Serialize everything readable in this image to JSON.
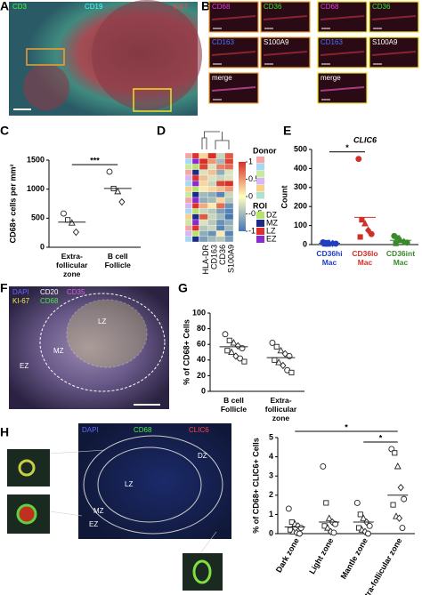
{
  "panel_letters": [
    "A",
    "B",
    "C",
    "D",
    "E",
    "F",
    "G",
    "H"
  ],
  "panel_a": {
    "labels": [
      "CD3",
      "CD19",
      "Ki67"
    ]
  },
  "panel_b": {
    "labels": [
      "CD68",
      "CD36",
      "CD163",
      "S100A9",
      "merge"
    ]
  },
  "panel_f": {
    "labels": [
      "DAPI",
      "CD20",
      "CD35",
      "KI-67",
      "CD68"
    ],
    "regions": [
      "LZ",
      "MZ",
      "EZ"
    ]
  },
  "panel_h": {
    "labels": [
      "DAPI",
      "CD68",
      "CLIC6"
    ],
    "regions": [
      "DZ",
      "LZ",
      "MZ",
      "EZ"
    ]
  },
  "chart_data": [
    {
      "type": "dot",
      "ylabel": "CD68+ cells per mm²",
      "categories": [
        "Extra-follicular zone",
        "B cell Follicle"
      ],
      "values": [
        [
          580,
          470,
          420,
          260
        ],
        [
          1300,
          1010,
          960,
          780
        ]
      ],
      "means": [
        432,
        1012
      ],
      "ylim": [
        0,
        1500
      ],
      "yticks": [
        0,
        500,
        1000,
        1500
      ],
      "brackets": [
        {
          "label": "***",
          "between": [
            0,
            1
          ]
        }
      ]
    },
    {
      "type": "heatmap",
      "columns": [
        "HLA-DR",
        "CD163",
        "CD36",
        "S100A9"
      ],
      "values": [
        [
          0.2,
          1,
          -0.3,
          0.8
        ],
        [
          1,
          0.5,
          -0.5,
          0.9
        ],
        [
          0.9,
          -0.2,
          0.6,
          0.7
        ],
        [
          -0.2,
          0.3,
          -0.6,
          -0.2
        ],
        [
          0.3,
          -0.2,
          -0.3,
          -0.2
        ],
        [
          0.2,
          -0.3,
          0.9,
          1
        ],
        [
          0.1,
          0.2,
          0.3,
          0.5
        ],
        [
          -0.5,
          -0.6,
          -0.9,
          -0.3
        ],
        [
          -0.6,
          -0.5,
          0.2,
          -0.4
        ],
        [
          0.4,
          0.1,
          0.7,
          -0.8
        ],
        [
          -0.3,
          -0.4,
          -0.7,
          -0.9
        ],
        [
          0.8,
          -0.3,
          -0.5,
          -1
        ],
        [
          -0.2,
          -0.4,
          -0.8,
          -0.6
        ],
        [
          -0.4,
          -0.3,
          -0.9,
          -0.5
        ],
        [
          -0.6,
          -0.8,
          0.1,
          -0.9
        ],
        [
          -0.7,
          -0.5,
          -0.4,
          -0.7
        ]
      ],
      "row_donor_colors": [
        "#f4a6a6",
        "#a6d8f4",
        "#c9e8a0",
        "#f4a6a6",
        "#d8b6f0",
        "#a6d8f4",
        "#f7d08a",
        "#c9e8a0",
        "#f4a6a6",
        "#d8b6f0",
        "#a6d8f4",
        "#f7d08a",
        "#c9e8a0",
        "#f4a6a6",
        "#d8b6f0",
        "#a6d8f4"
      ],
      "row_roi": [
        "LZ",
        "EZ",
        "DZ",
        "MZ",
        "LZ",
        "EZ",
        "DZ",
        "MZ",
        "EZ",
        "LZ",
        "DZ",
        "MZ",
        "EZ",
        "LZ",
        "DZ",
        "MZ"
      ],
      "zlim": [
        -1,
        1
      ],
      "colorbar_ticks": [
        1,
        0.5,
        0,
        -0.5,
        -1
      ],
      "donor_title": "Donor",
      "donor_colors": [
        "#f4a6a6",
        "#a6d8f4",
        "#c9e8a0",
        "#d8b6f0",
        "#f7d08a",
        "#b0e0d0"
      ],
      "roi_title": "ROI",
      "roi": [
        {
          "name": "DZ",
          "color": "#b8e36a"
        },
        {
          "name": "MZ",
          "color": "#1b2a8a"
        },
        {
          "name": "LZ",
          "color": "#e0302a"
        },
        {
          "name": "EZ",
          "color": "#8a2ad0"
        }
      ]
    },
    {
      "type": "dot",
      "title": "CLIC6",
      "ylabel": "Count",
      "categories": [
        "CD36hi Mac",
        "CD36lo Mac",
        "CD36int Mac"
      ],
      "colors": [
        "#1f3fbf",
        "#d0302a",
        "#3a8a2a"
      ],
      "values": [
        [
          12,
          10,
          8,
          6,
          5,
          4,
          3
        ],
        [
          450,
          130,
          110,
          75,
          55,
          40
        ],
        [
          45,
          35,
          22,
          15,
          10,
          6
        ]
      ],
      "means": [
        7,
        143,
        22
      ],
      "ylim": [
        0,
        500
      ],
      "yticks": [
        0,
        100,
        200,
        300,
        400,
        500
      ],
      "brackets": [
        {
          "label": "*",
          "between": [
            0,
            1
          ]
        }
      ]
    },
    {
      "type": "dot",
      "ylabel": "% of CD68+ Cells",
      "categories": [
        "B cell Follicle",
        "Extra-follicular zone"
      ],
      "values": [
        [
          73,
          65,
          62,
          58,
          55,
          52,
          50,
          45,
          42,
          38
        ],
        [
          62,
          57,
          52,
          48,
          45,
          40,
          37,
          33,
          27,
          24
        ]
      ],
      "means": [
        57,
        43
      ],
      "ylim": [
        0,
        100
      ],
      "yticks": [
        0,
        20,
        40,
        60,
        80,
        100
      ]
    },
    {
      "type": "dot",
      "ylabel": "% of CD68+ CLIC6+ Cells",
      "categories": [
        "Dark zone",
        "Light zone",
        "Mantle zone",
        "Extra-follicular zone"
      ],
      "values": [
        [
          1.3,
          0.6,
          0.5,
          0.4,
          0.3,
          0.2,
          0.1,
          0.05,
          0
        ],
        [
          3.5,
          1.6,
          0.8,
          0.6,
          0.5,
          0.4,
          0.3,
          0.1,
          0.05
        ],
        [
          1.6,
          1.0,
          0.8,
          0.6,
          0.4,
          0.3,
          0.2,
          0.1,
          0
        ],
        [
          4.4,
          4.2,
          3.5,
          2.4,
          1.8,
          1.5,
          0.9,
          0.8,
          0.3
        ]
      ],
      "means": [
        0.35,
        0.6,
        0.6,
        2.0
      ],
      "ylim": [
        0,
        5
      ],
      "yticks": [
        0,
        1,
        2,
        3,
        4,
        5
      ],
      "rotate_labels": true,
      "brackets": [
        {
          "label": "*",
          "between": [
            0,
            3
          ]
        },
        {
          "label": "*",
          "between": [
            2,
            3
          ]
        }
      ]
    }
  ]
}
